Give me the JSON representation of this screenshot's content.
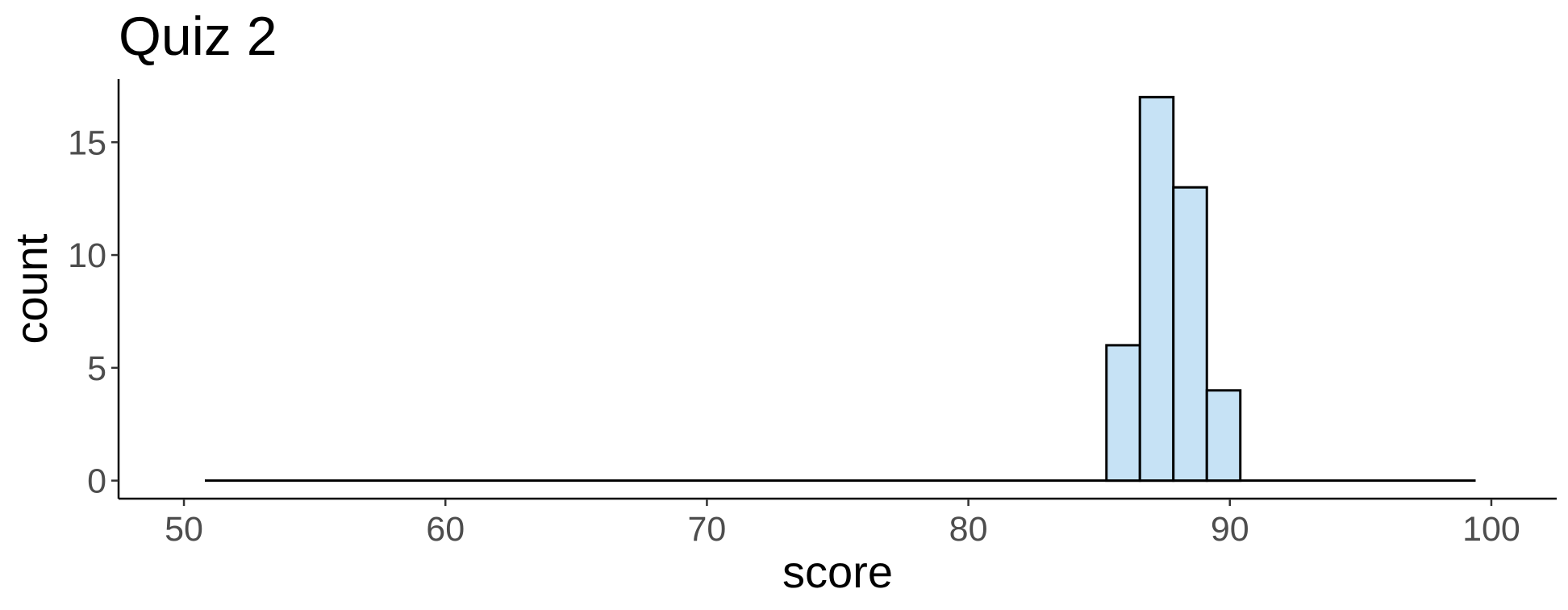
{
  "chart_data": {
    "type": "bar",
    "title": "Quiz 2",
    "xlabel": "score",
    "ylabel": "count",
    "xlim": [
      47.5,
      102.5
    ],
    "ylim": [
      -0.8,
      17.8
    ],
    "x_ticks": [
      50,
      60,
      70,
      80,
      90,
      100
    ],
    "y_ticks": [
      0,
      5,
      10,
      15
    ],
    "bar_fill": "#c6e2f5",
    "bar_stroke": "#000000",
    "bin_width": 1.28,
    "bin_range": [
      50.8,
      99.4
    ],
    "bins": [
      {
        "x0": 85.28,
        "x1": 86.56,
        "count": 6
      },
      {
        "x0": 86.56,
        "x1": 87.84,
        "count": 17
      },
      {
        "x0": 87.84,
        "x1": 89.12,
        "count": 13
      },
      {
        "x0": 89.12,
        "x1": 90.4,
        "count": 4
      }
    ],
    "grid": false,
    "legend": "none"
  }
}
